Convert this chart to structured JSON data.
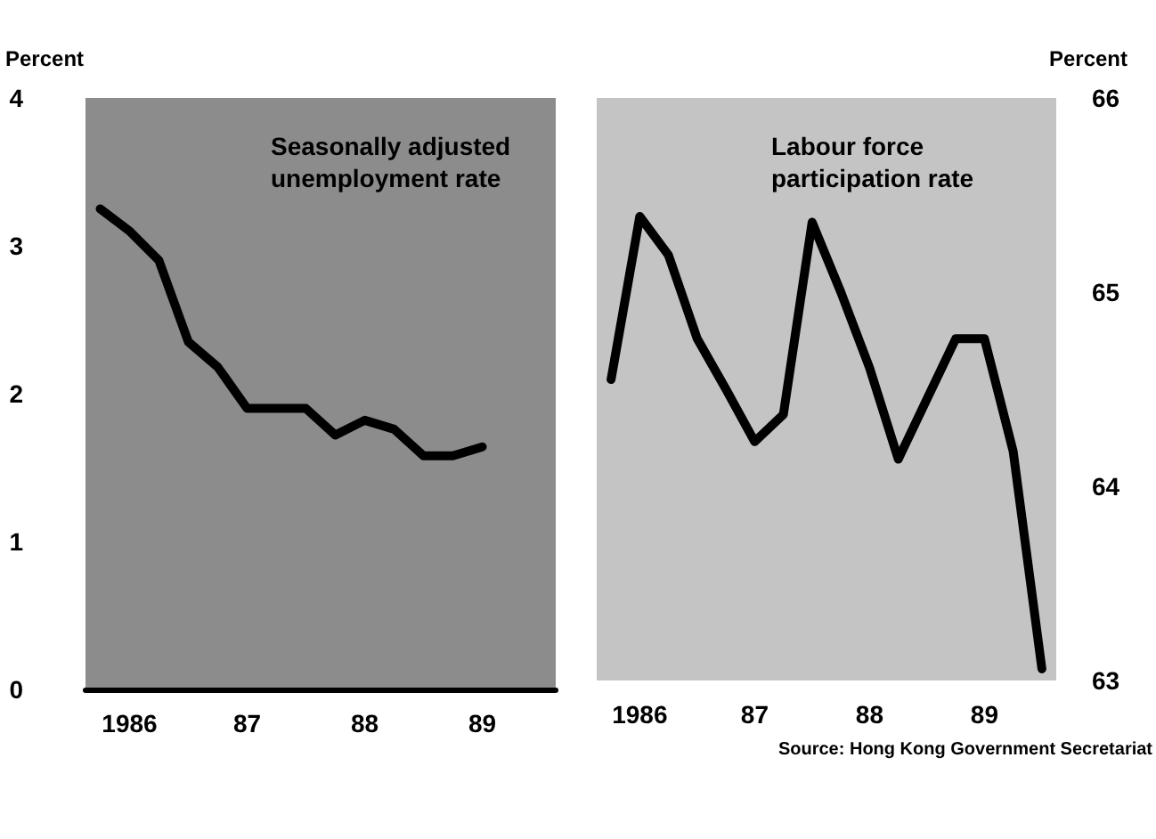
{
  "chart_data": [
    {
      "type": "line",
      "ylabel": "Percent",
      "ylim": [
        0,
        4
      ],
      "yticks": [
        0,
        1,
        2,
        3,
        4
      ],
      "categories": [
        null,
        "1986",
        null,
        null,
        null,
        "87",
        null,
        null,
        null,
        "88",
        null,
        null,
        null,
        "89",
        null,
        null
      ],
      "series": [
        {
          "name": "Seasonally adjusted unemployment rate",
          "color": "#000000",
          "values": [
            3.25,
            3.1,
            2.9,
            2.35,
            2.18,
            1.9,
            1.9,
            1.9,
            1.72,
            1.82,
            1.76,
            1.58,
            1.58,
            1.64,
            null,
            null
          ]
        }
      ],
      "grid": false
    },
    {
      "type": "line",
      "y2label": "Percent",
      "y2lim": [
        63,
        66
      ],
      "y2ticks": [
        63,
        64,
        65,
        66
      ],
      "categories": [
        null,
        "1986",
        null,
        null,
        null,
        "87",
        null,
        null,
        null,
        "88",
        null,
        null,
        null,
        "89",
        null,
        null
      ],
      "series": [
        {
          "name": "Labour force participation rate",
          "color": "#000000",
          "axis": "y2",
          "values": [
            64.55,
            65.39,
            65.19,
            64.76,
            64.5,
            64.23,
            64.37,
            65.36,
            65.0,
            64.61,
            64.14,
            64.45,
            64.76,
            64.76,
            64.18,
            63.06
          ]
        }
      ],
      "annotations": [
        "Source: Hong Kong Government Secretariat"
      ],
      "grid": false
    }
  ]
}
